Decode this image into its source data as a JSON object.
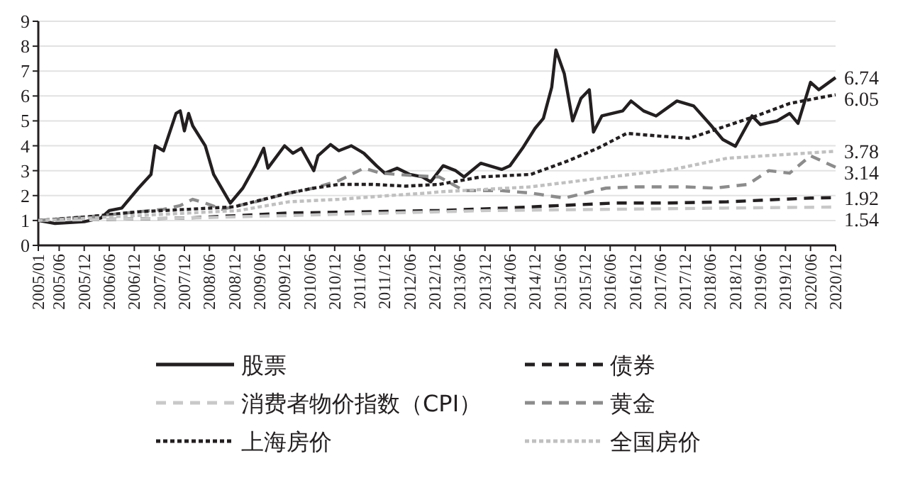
{
  "chart_data": {
    "type": "line",
    "xlim": [
      "2005-01",
      "2020-12"
    ],
    "ylim": [
      0,
      9
    ],
    "yticks": [
      0,
      1,
      2,
      3,
      4,
      5,
      6,
      7,
      8,
      9
    ],
    "xticks": [
      {
        "value": "2005-01",
        "label": "2005/01"
      },
      {
        "value": "2005-06",
        "label": "2005/06"
      },
      {
        "value": "2005-12",
        "label": "2005/12"
      },
      {
        "value": "2006-06",
        "label": "2006/06"
      },
      {
        "value": "2006-12",
        "label": "2006/12"
      },
      {
        "value": "2007-06",
        "label": "2007/06"
      },
      {
        "value": "2007-12",
        "label": "2007/12"
      },
      {
        "value": "2008-06",
        "label": "2008/06"
      },
      {
        "value": "2008-12",
        "label": "2008/12"
      },
      {
        "value": "2009-06",
        "label": "2009/06"
      },
      {
        "value": "2009-12",
        "label": "2009/12"
      },
      {
        "value": "2010-06",
        "label": "2010/06"
      },
      {
        "value": "2010-12",
        "label": "2010/12"
      },
      {
        "value": "2011-06",
        "label": "2011/06"
      },
      {
        "value": "2011-12",
        "label": "2011/12"
      },
      {
        "value": "2012-06",
        "label": "2012/06"
      },
      {
        "value": "2012-12",
        "label": "2012/12"
      },
      {
        "value": "2013-06",
        "label": "2013/06"
      },
      {
        "value": "2013-12",
        "label": "2013/12"
      },
      {
        "value": "2014-06",
        "label": "2014/06"
      },
      {
        "value": "2014-12",
        "label": "2014/12"
      },
      {
        "value": "2015-06",
        "label": "2015/06"
      },
      {
        "value": "2015-12",
        "label": "2015/12"
      },
      {
        "value": "2016-06",
        "label": "2016/06"
      },
      {
        "value": "2016-12",
        "label": "2016/12"
      },
      {
        "value": "2017-06",
        "label": "2017/06"
      },
      {
        "value": "2017-12",
        "label": "2017/12"
      },
      {
        "value": "2018-06",
        "label": "2018/06"
      },
      {
        "value": "2018-12",
        "label": "2018/12"
      },
      {
        "value": "2019-06",
        "label": "2019/06"
      },
      {
        "value": "2019-12",
        "label": "2019/12"
      },
      {
        "value": "2020-06",
        "label": "2020/06"
      },
      {
        "value": "2020-12",
        "label": "2020/12"
      }
    ],
    "grid": "y",
    "legend": "bottom",
    "marker": "none",
    "series": [
      {
        "name": "股票",
        "color": "#231f20",
        "line_style": "solid",
        "x": [
          "2005-01",
          "2005-05",
          "2005-12",
          "2006-04",
          "2006-06",
          "2006-09",
          "2007-01",
          "2007-04",
          "2007-05",
          "2007-07",
          "2007-10",
          "2007-11",
          "2007-12",
          "2008-01",
          "2008-02",
          "2008-05",
          "2008-07",
          "2008-11",
          "2009-02",
          "2009-05",
          "2009-07",
          "2009-08",
          "2009-12",
          "2010-02",
          "2010-04",
          "2010-07",
          "2010-08",
          "2010-11",
          "2011-01",
          "2011-04",
          "2011-07",
          "2011-10",
          "2011-12",
          "2012-03",
          "2012-06",
          "2012-09",
          "2012-11",
          "2013-02",
          "2013-05",
          "2013-07",
          "2013-11",
          "2014-04",
          "2014-06",
          "2014-09",
          "2014-12",
          "2015-02",
          "2015-04",
          "2015-05",
          "2015-07",
          "2015-09",
          "2015-11",
          "2016-01",
          "2016-02",
          "2016-04",
          "2016-09",
          "2016-11",
          "2017-02",
          "2017-05",
          "2017-10",
          "2018-02",
          "2018-06",
          "2018-09",
          "2018-12",
          "2019-04",
          "2019-06",
          "2019-10",
          "2020-01",
          "2020-03",
          "2020-06",
          "2020-08",
          "2020-12"
        ],
        "values": [
          1.0,
          0.88,
          0.95,
          1.1,
          1.4,
          1.5,
          2.3,
          2.85,
          4.0,
          3.8,
          5.3,
          5.4,
          4.6,
          5.3,
          4.8,
          4.0,
          2.85,
          1.7,
          2.3,
          3.2,
          3.9,
          3.1,
          4.0,
          3.7,
          3.9,
          3.0,
          3.6,
          4.05,
          3.8,
          4.0,
          3.7,
          3.2,
          2.9,
          3.1,
          2.85,
          2.75,
          2.55,
          3.2,
          3.0,
          2.75,
          3.3,
          3.05,
          3.2,
          3.9,
          4.7,
          5.1,
          6.35,
          7.85,
          6.9,
          5.0,
          5.9,
          6.25,
          4.55,
          5.2,
          5.4,
          5.8,
          5.4,
          5.2,
          5.8,
          5.6,
          4.85,
          4.25,
          3.98,
          5.2,
          4.85,
          5.0,
          5.3,
          4.9,
          6.55,
          6.25,
          6.74
        ]
      },
      {
        "name": "债券",
        "color": "#231f20",
        "line_style": "dashed",
        "x": [
          "2005-01",
          "2008-01",
          "2009-01",
          "2010-01",
          "2011-07",
          "2013-01",
          "2014-05",
          "2015-06",
          "2016-07",
          "2017-07",
          "2018-10",
          "2019-11",
          "2020-06",
          "2020-12"
        ],
        "values": [
          1.0,
          1.1,
          1.2,
          1.3,
          1.35,
          1.4,
          1.5,
          1.6,
          1.7,
          1.7,
          1.75,
          1.85,
          1.9,
          1.92
        ]
      },
      {
        "name": "消费者物价指数（CPI）",
        "color": "#c8c8c8",
        "line_style": "dashed",
        "x": [
          "2005-01",
          "2008-01",
          "2010-01",
          "2012-01",
          "2014-01",
          "2016-07",
          "2018-10",
          "2020-12"
        ],
        "values": [
          1.0,
          1.1,
          1.2,
          1.3,
          1.4,
          1.45,
          1.5,
          1.54
        ]
      },
      {
        "name": "黄金",
        "color": "#8c8c8c",
        "line_style": "dashed",
        "x": [
          "2005-01",
          "2006-01",
          "2007-01",
          "2007-07",
          "2007-11",
          "2008-02",
          "2008-05",
          "2008-09",
          "2009-05",
          "2010-01",
          "2010-07",
          "2011-01",
          "2011-07",
          "2011-11",
          "2012-07",
          "2013-01",
          "2013-07",
          "2014-04",
          "2014-11",
          "2015-07",
          "2016-05",
          "2016-12",
          "2017-12",
          "2018-07",
          "2019-03",
          "2019-08",
          "2020-01",
          "2020-06",
          "2020-12"
        ],
        "values": [
          1.0,
          1.15,
          1.35,
          1.45,
          1.6,
          1.85,
          1.7,
          1.45,
          1.75,
          2.1,
          2.3,
          2.6,
          3.1,
          2.9,
          2.8,
          2.75,
          2.2,
          2.2,
          2.1,
          1.9,
          2.3,
          2.35,
          2.35,
          2.3,
          2.45,
          3.0,
          2.9,
          3.6,
          3.14
        ]
      },
      {
        "name": "上海房价",
        "color": "#231f20",
        "line_style": "dotted",
        "x": [
          "2005-01",
          "2006-01",
          "2007-01",
          "2008-01",
          "2008-12",
          "2009-07",
          "2010-01",
          "2010-07",
          "2011-01",
          "2011-09",
          "2012-05",
          "2013-01",
          "2013-11",
          "2014-11",
          "2015-08",
          "2016-03",
          "2016-10",
          "2017-05",
          "2018-01",
          "2018-09",
          "2019-05",
          "2020-01",
          "2020-12"
        ],
        "values": [
          1.0,
          1.15,
          1.35,
          1.45,
          1.55,
          1.85,
          2.1,
          2.3,
          2.45,
          2.45,
          2.38,
          2.45,
          2.75,
          2.85,
          3.4,
          3.9,
          4.5,
          4.4,
          4.3,
          4.75,
          5.2,
          5.7,
          6.05
        ]
      },
      {
        "name": "全国房价",
        "color": "#c0c0c0",
        "line_style": "dotted",
        "x": [
          "2005-01",
          "2007-01",
          "2009-01",
          "2010-01",
          "2011-01",
          "2012-01",
          "2012-10",
          "2013-01",
          "2014-11",
          "2016-06",
          "2017-09",
          "2018-10",
          "2020-12"
        ],
        "values": [
          1.0,
          1.2,
          1.4,
          1.75,
          1.85,
          2.0,
          2.1,
          2.15,
          2.35,
          2.75,
          3.05,
          3.5,
          3.78
        ]
      }
    ],
    "annotations": [
      {
        "text": "6.74",
        "x": "2020-12",
        "y": 6.74
      },
      {
        "text": "6.05",
        "x": "2020-12",
        "y": 6.05
      },
      {
        "text": "3.78",
        "x": "2020-12",
        "y": 3.78
      },
      {
        "text": "3.14",
        "x": "2020-12",
        "y": 3.14
      },
      {
        "text": "1.92",
        "x": "2020-12",
        "y": 1.92
      },
      {
        "text": "1.54",
        "x": "2020-12",
        "y": 1.54
      }
    ]
  }
}
